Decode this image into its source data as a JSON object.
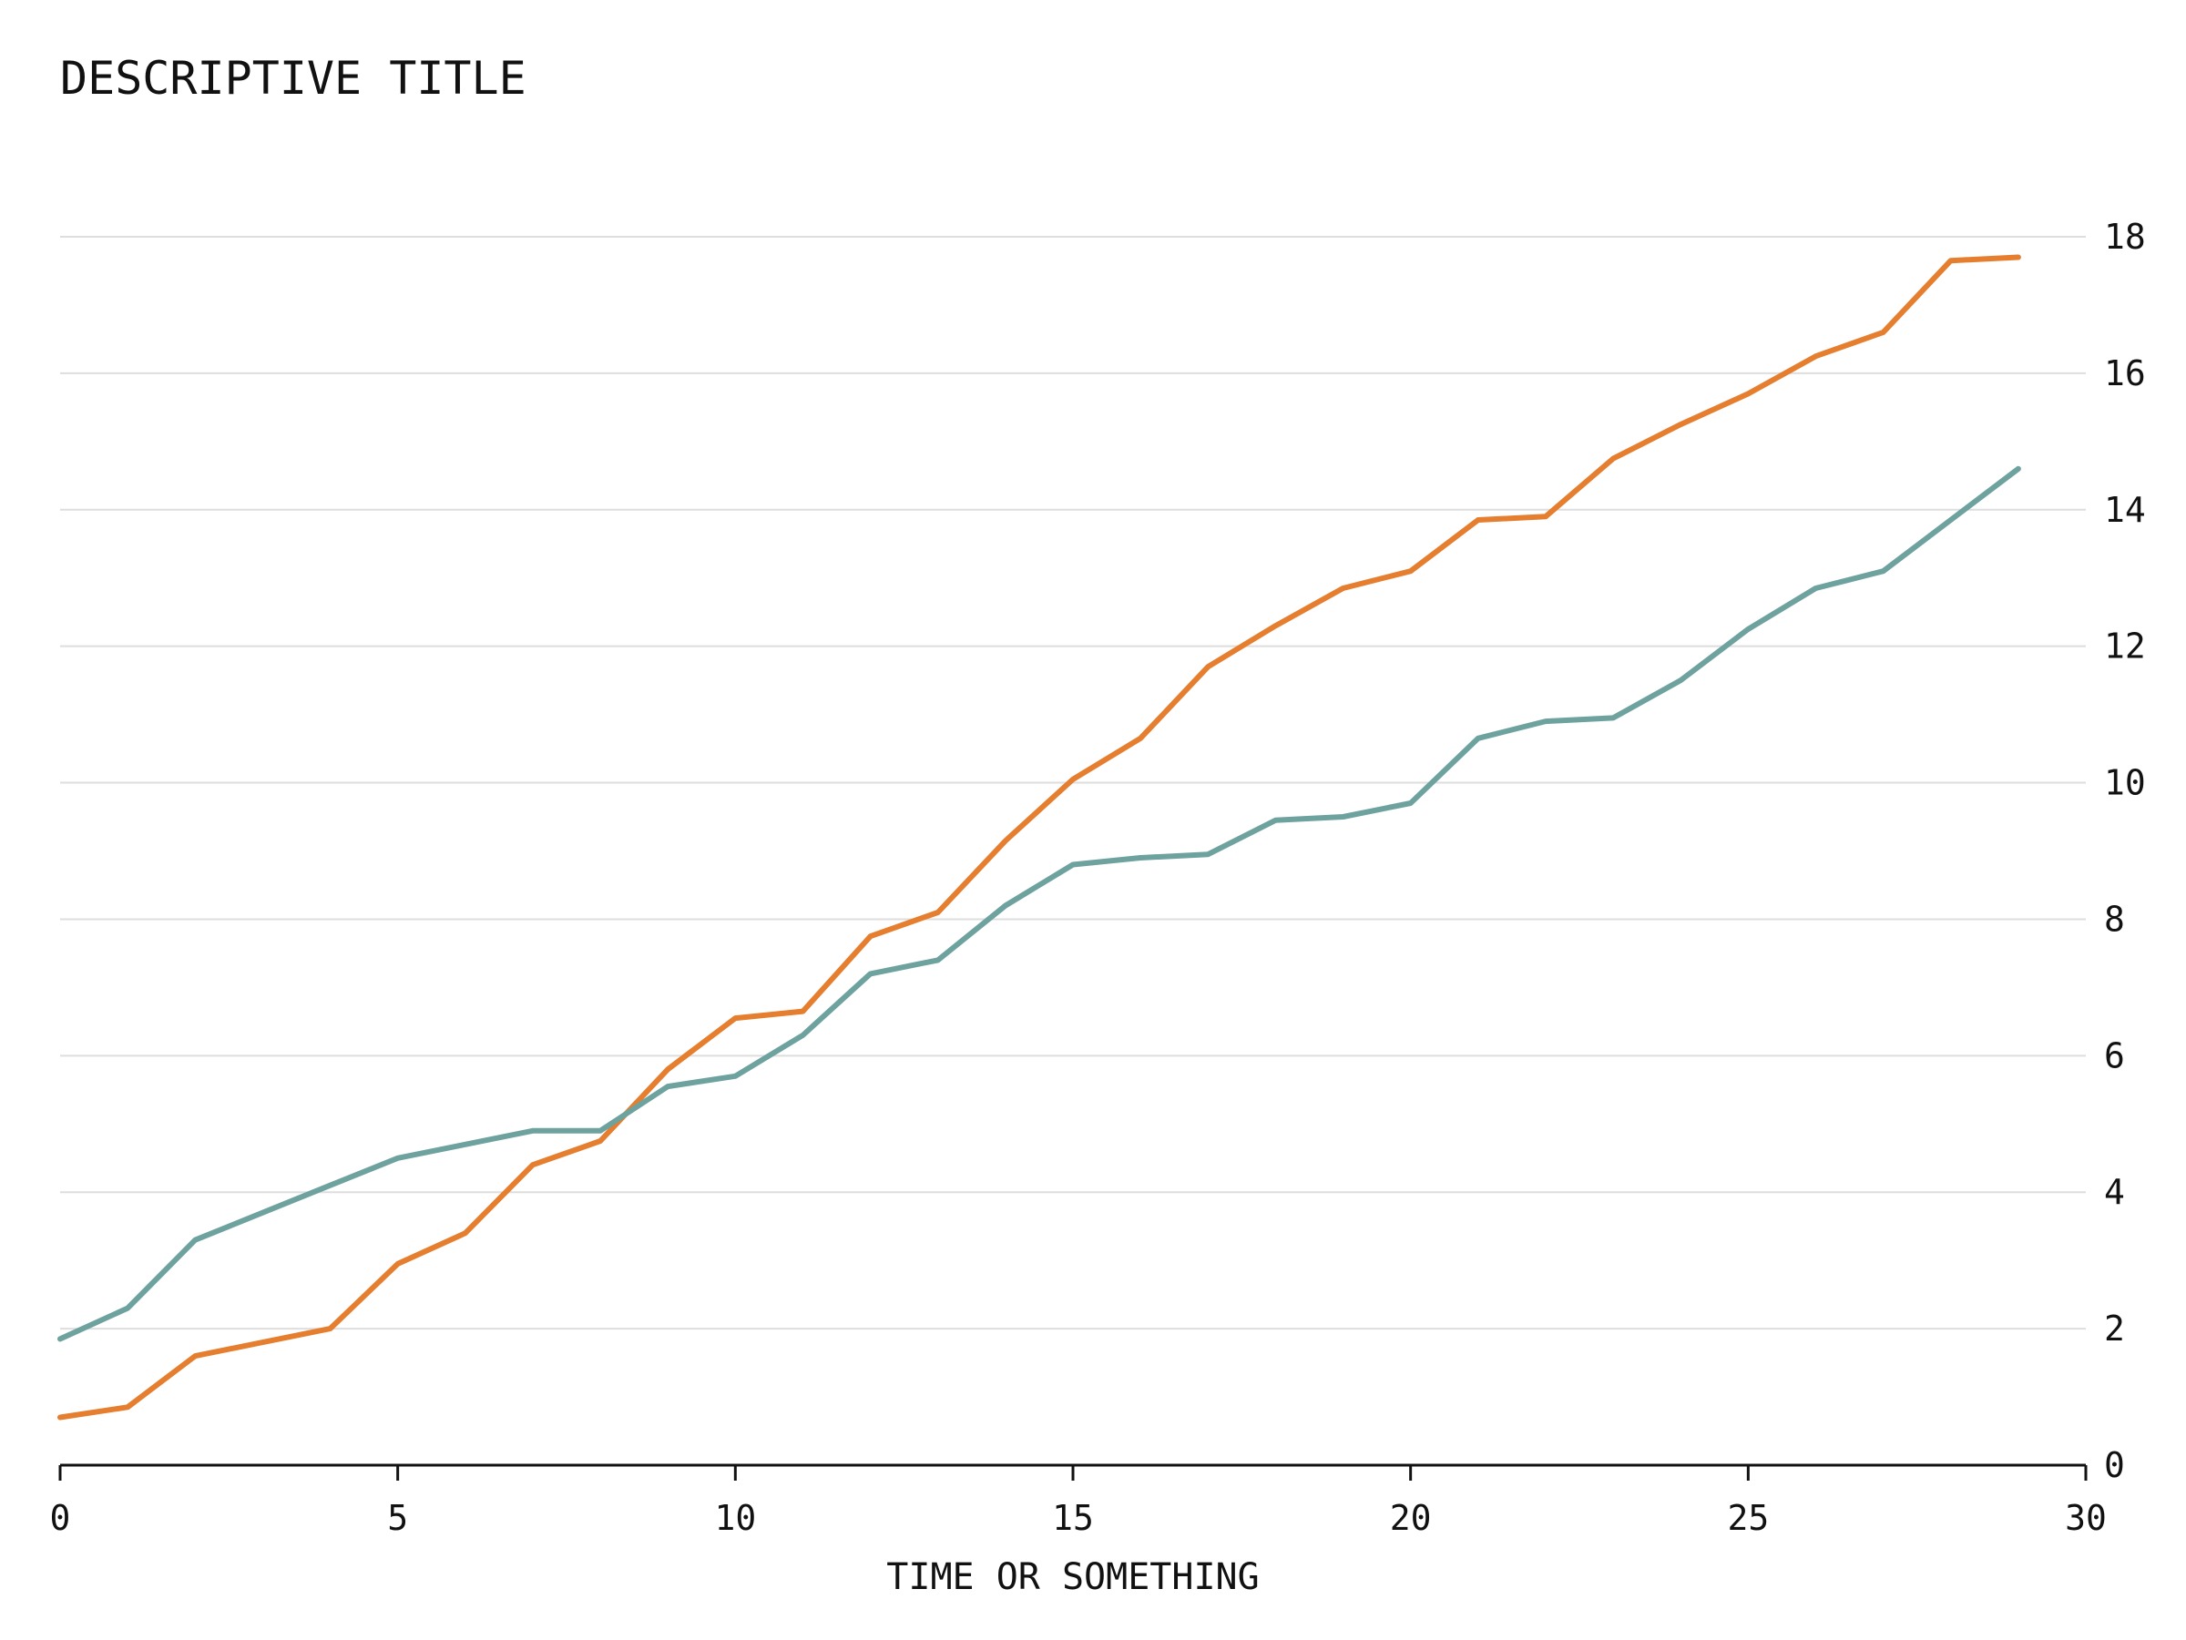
{
  "chart_data": {
    "type": "line",
    "title": "DESCRIPTIVE TITLE",
    "xlabel": "TIME OR SOMETHING",
    "ylabel": "",
    "xlim": [
      0,
      30
    ],
    "ylim": [
      0,
      18
    ],
    "x_ticks": [
      0,
      5,
      10,
      15,
      20,
      25,
      30
    ],
    "y_ticks": [
      0,
      2,
      4,
      6,
      8,
      10,
      12,
      14,
      16,
      18
    ],
    "y_axis_position": "right",
    "grid": "horizontal",
    "legend": "none",
    "x": [
      0,
      1,
      2,
      3,
      4,
      5,
      6,
      7,
      8,
      9,
      10,
      11,
      12,
      13,
      14,
      15,
      16,
      17,
      18,
      19,
      20,
      21,
      22,
      23,
      24,
      25,
      26,
      27,
      28,
      29
    ],
    "series": [
      {
        "color": "#e57e2e",
        "values": [
          0.7,
          0.85,
          1.6,
          1.8,
          2.0,
          2.95,
          3.4,
          4.4,
          4.75,
          5.8,
          6.55,
          6.65,
          7.75,
          8.1,
          9.15,
          10.05,
          10.65,
          11.7,
          12.3,
          12.85,
          13.1,
          13.85,
          13.9,
          14.75,
          15.25,
          15.7,
          16.25,
          16.6,
          17.65,
          17.7
        ]
      },
      {
        "color": "#6ea29f",
        "values": [
          1.85,
          2.3,
          3.3,
          3.7,
          4.1,
          4.5,
          4.7,
          4.9,
          4.9,
          5.55,
          5.7,
          6.3,
          7.2,
          7.4,
          8.2,
          8.8,
          8.9,
          8.95,
          9.45,
          9.5,
          9.7,
          10.65,
          10.9,
          10.95,
          11.5,
          12.25,
          12.85,
          13.1,
          13.85,
          14.6
        ]
      }
    ]
  }
}
